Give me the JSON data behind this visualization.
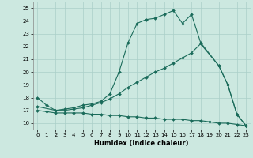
{
  "xlabel": "Humidex (Indice chaleur)",
  "xlim": [
    -0.5,
    23.5
  ],
  "ylim": [
    15.5,
    25.5
  ],
  "yticks": [
    16,
    17,
    18,
    19,
    20,
    21,
    22,
    23,
    24,
    25
  ],
  "xticks": [
    0,
    1,
    2,
    3,
    4,
    5,
    6,
    7,
    8,
    9,
    10,
    11,
    12,
    13,
    14,
    15,
    16,
    17,
    18,
    19,
    20,
    21,
    22,
    23
  ],
  "background_color": "#cce8e0",
  "grid_color": "#aacfc8",
  "line_color": "#1a6b5a",
  "line1_x": [
    0,
    1,
    2,
    3,
    4,
    5,
    6,
    7,
    8,
    9,
    10,
    11,
    12,
    13,
    14,
    15,
    16,
    17,
    18,
    20,
    21,
    22,
    23
  ],
  "line1_y": [
    18.0,
    17.4,
    17.0,
    17.1,
    17.2,
    17.4,
    17.5,
    17.7,
    18.3,
    20.0,
    22.3,
    23.8,
    24.1,
    24.2,
    24.5,
    24.8,
    23.8,
    24.5,
    22.3,
    20.5,
    19.0,
    16.7,
    15.8
  ],
  "line2_x": [
    0,
    2,
    3,
    4,
    5,
    6,
    7,
    8,
    9,
    10,
    11,
    12,
    13,
    14,
    15,
    16,
    17,
    18,
    20,
    21,
    22,
    23
  ],
  "line2_y": [
    17.3,
    17.0,
    17.0,
    17.1,
    17.2,
    17.4,
    17.6,
    17.9,
    18.3,
    18.8,
    19.2,
    19.6,
    20.0,
    20.3,
    20.7,
    21.1,
    21.5,
    22.2,
    20.5,
    19.0,
    16.7,
    15.8
  ],
  "line3_x": [
    0,
    1,
    2,
    3,
    4,
    5,
    6,
    7,
    8,
    9,
    10,
    11,
    12,
    13,
    14,
    15,
    16,
    17,
    18,
    19,
    20,
    21,
    22,
    23
  ],
  "line3_y": [
    17.0,
    16.9,
    16.8,
    16.8,
    16.8,
    16.8,
    16.7,
    16.7,
    16.6,
    16.6,
    16.5,
    16.5,
    16.4,
    16.4,
    16.3,
    16.3,
    16.3,
    16.2,
    16.2,
    16.1,
    16.0,
    16.0,
    15.9,
    15.8
  ]
}
